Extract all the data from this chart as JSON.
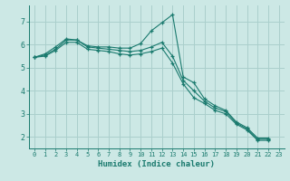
{
  "xlabel": "Humidex (Indice chaleur)",
  "ylabel": "",
  "bg_color": "#cce8e5",
  "grid_color": "#aacfcc",
  "line_color": "#1a7a6e",
  "xlim": [
    -0.5,
    23.5
  ],
  "ylim": [
    1.5,
    7.7
  ],
  "yticks": [
    2,
    3,
    4,
    5,
    6,
    7
  ],
  "xticks": [
    0,
    1,
    2,
    3,
    4,
    5,
    6,
    7,
    8,
    9,
    10,
    11,
    12,
    13,
    14,
    15,
    16,
    17,
    18,
    19,
    20,
    21,
    22,
    23
  ],
  "series": [
    {
      "x": [
        0,
        1,
        2,
        3,
        4,
        5,
        6,
        7,
        8,
        9,
        10,
        11,
        12,
        13,
        14,
        15,
        16,
        17,
        18,
        19,
        20,
        21,
        22
      ],
      "y": [
        5.45,
        5.6,
        5.9,
        6.25,
        6.2,
        5.95,
        5.9,
        5.9,
        5.85,
        5.85,
        6.05,
        6.6,
        6.95,
        7.3,
        4.6,
        4.35,
        3.65,
        3.35,
        3.15,
        2.65,
        2.4,
        1.95,
        1.95
      ]
    },
    {
      "x": [
        0,
        1,
        2,
        3,
        4,
        5,
        6,
        7,
        8,
        9,
        10,
        11,
        12,
        13,
        14,
        15,
        16,
        17,
        18,
        19,
        20,
        21,
        22
      ],
      "y": [
        5.45,
        5.55,
        5.8,
        6.2,
        6.2,
        5.9,
        5.85,
        5.8,
        5.75,
        5.7,
        5.75,
        5.9,
        6.1,
        5.5,
        4.45,
        4.0,
        3.55,
        3.25,
        3.1,
        2.6,
        2.35,
        1.9,
        1.9
      ]
    },
    {
      "x": [
        0,
        1,
        2,
        3,
        4,
        5,
        6,
        7,
        8,
        9,
        10,
        11,
        12,
        13,
        14,
        15,
        16,
        17,
        18,
        19,
        20,
        21,
        22
      ],
      "y": [
        5.45,
        5.5,
        5.75,
        6.1,
        6.1,
        5.8,
        5.75,
        5.7,
        5.6,
        5.55,
        5.6,
        5.7,
        5.85,
        5.2,
        4.3,
        3.7,
        3.45,
        3.15,
        3.0,
        2.55,
        2.3,
        1.85,
        1.85
      ]
    }
  ]
}
